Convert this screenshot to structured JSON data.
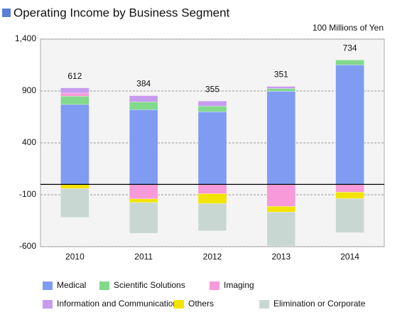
{
  "chart_data": {
    "type": "stacked-bar",
    "title": "Operating Income by Business Segment",
    "unit_label": "100 Millions of Yen",
    "categories": [
      "2010",
      "2011",
      "2012",
      "2013",
      "2014"
    ],
    "series": [
      {
        "name": "Medical",
        "color": "#7f9cf2",
        "values": [
          770,
          720,
          700,
          897,
          1151
        ]
      },
      {
        "name": "Scientific Solutions",
        "color": "#82d98c",
        "values": [
          80,
          75,
          55,
          27,
          48
        ]
      },
      {
        "name": "Imaging",
        "color": "#f69ad9",
        "values": [
          30,
          -140,
          -90,
          -212,
          -75
        ]
      },
      {
        "name": "Information and Communication",
        "color": "#c89af0",
        "values": [
          50,
          60,
          48,
          20,
          0
        ]
      },
      {
        "name": "Others",
        "color": "#f2e400",
        "values": [
          -40,
          -35,
          -95,
          -55,
          -62
        ]
      },
      {
        "name": "Elimination or Corporate",
        "color": "#c9d7d3",
        "values": [
          -278,
          -296,
          -263,
          -326,
          -328
        ]
      }
    ],
    "totals": [
      612,
      384,
      355,
      351,
      734
    ],
    "ylim": [
      -600,
      1400
    ],
    "yticks": [
      -600,
      -100,
      400,
      900,
      {
        "value": 1400,
        "label": "1,400"
      }
    ],
    "grid": true
  }
}
